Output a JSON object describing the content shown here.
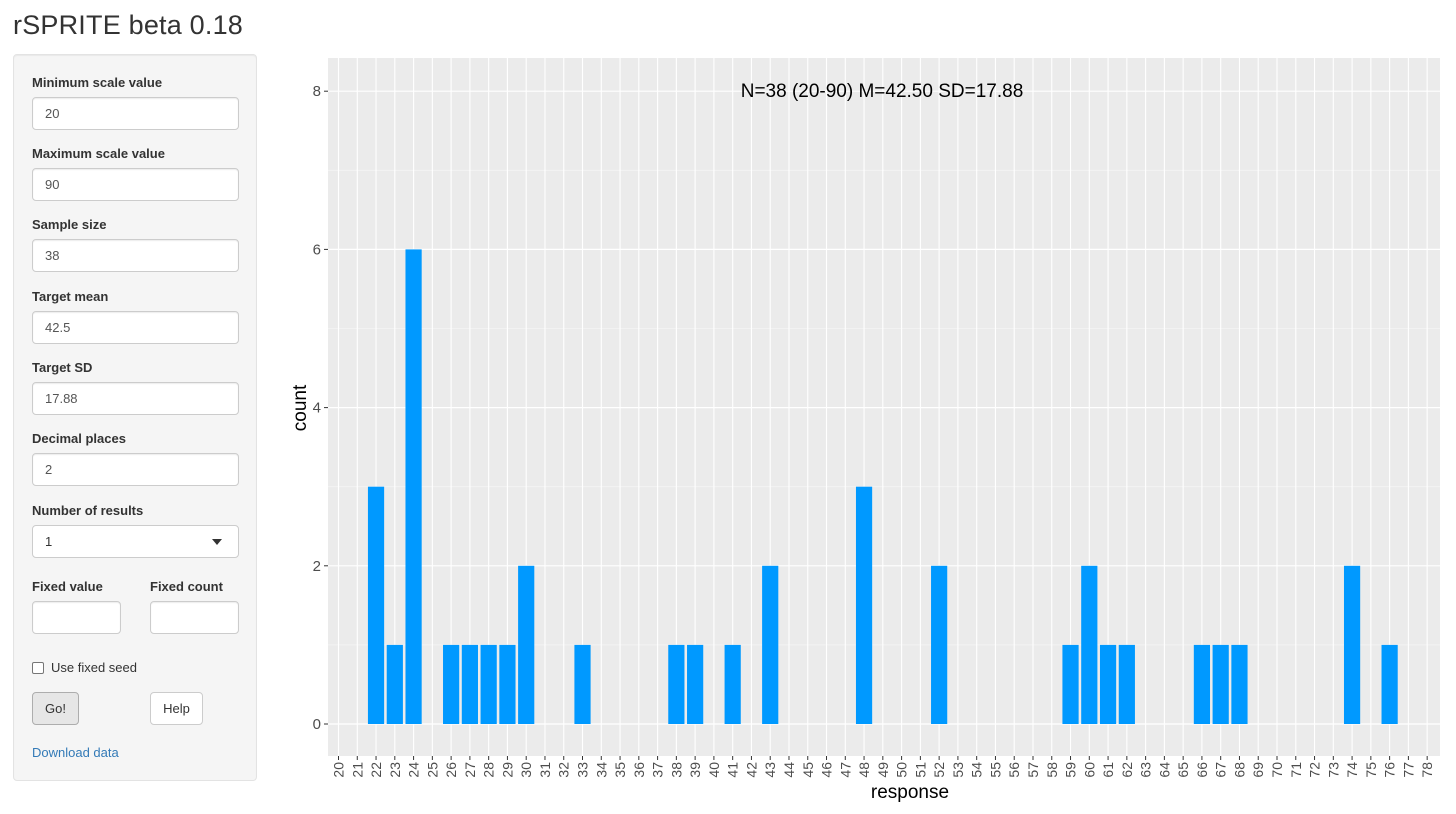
{
  "app": {
    "title": "rSPRITE beta 0.18"
  },
  "inputs": {
    "min_scale": {
      "label": "Minimum scale value",
      "value": "20"
    },
    "max_scale": {
      "label": "Maximum scale value",
      "value": "90"
    },
    "sample_size": {
      "label": "Sample size",
      "value": "38"
    },
    "target_mean": {
      "label": "Target mean",
      "value": "42.5"
    },
    "target_sd": {
      "label": "Target SD",
      "value": "17.88"
    },
    "decimal_places": {
      "label": "Decimal places",
      "value": "2"
    },
    "num_results": {
      "label": "Number of results",
      "value": "1"
    },
    "fixed_value": {
      "label": "Fixed value",
      "value": ""
    },
    "fixed_count": {
      "label": "Fixed count",
      "value": ""
    }
  },
  "checkbox": {
    "label": "Use fixed seed",
    "checked": false
  },
  "buttons": {
    "go": "Go!",
    "help": "Help"
  },
  "links": {
    "download": "Download data"
  },
  "chart_data": {
    "type": "bar",
    "annotation": "N=38 (20-90) M=42.50 SD=17.88",
    "xlabel": "response",
    "ylabel": "count",
    "categories": [
      "20",
      "21",
      "22",
      "23",
      "24",
      "25",
      "26",
      "27",
      "28",
      "29",
      "30",
      "31",
      "32",
      "33",
      "34",
      "35",
      "36",
      "37",
      "38",
      "39",
      "40",
      "41",
      "42",
      "43",
      "44",
      "45",
      "46",
      "47",
      "48",
      "49",
      "50",
      "51",
      "52",
      "53",
      "54",
      "55",
      "56",
      "57",
      "58",
      "59",
      "60",
      "61",
      "62",
      "63",
      "64",
      "65",
      "66",
      "67",
      "68",
      "69",
      "70",
      "71",
      "72",
      "73",
      "74",
      "75",
      "76",
      "77",
      "78"
    ],
    "values": [
      0,
      0,
      3,
      1,
      6,
      0,
      1,
      1,
      1,
      1,
      2,
      0,
      0,
      1,
      0,
      0,
      0,
      0,
      1,
      1,
      0,
      1,
      0,
      2,
      0,
      0,
      0,
      0,
      3,
      0,
      0,
      0,
      2,
      0,
      0,
      0,
      0,
      0,
      0,
      1,
      2,
      1,
      1,
      0,
      0,
      0,
      1,
      1,
      1,
      0,
      0,
      0,
      0,
      0,
      2,
      0,
      1,
      0,
      0
    ],
    "ylim": [
      0,
      8
    ],
    "yticks": [
      "0",
      "2",
      "4",
      "6",
      "8"
    ],
    "bar_color": "#0099ff",
    "panel_color": "#ebebeb",
    "grid": true
  }
}
